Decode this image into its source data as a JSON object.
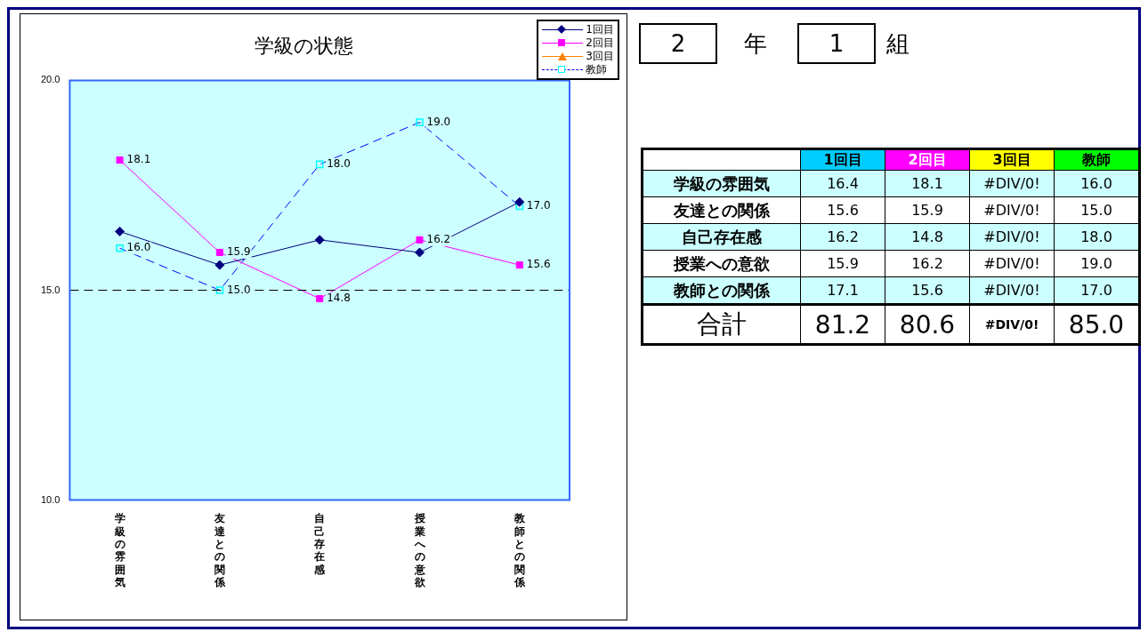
{
  "chart_data": [
    {
      "type": "line",
      "title": "学級の状態",
      "categories": [
        "学級の雰囲気",
        "友達との関係",
        "自己存在感",
        "授業への意欲",
        "教師との関係"
      ],
      "series": [
        {
          "name": "1回目",
          "color": "#000080",
          "marker": "diamond",
          "line_style": "solid",
          "values": [
            16.4,
            15.6,
            16.2,
            15.9,
            17.1
          ]
        },
        {
          "name": "2回目",
          "color": "#ff00ff",
          "marker": "square",
          "line_style": "solid",
          "values": [
            18.1,
            15.9,
            14.8,
            16.2,
            15.6
          ],
          "value_labels": [
            "18.1",
            "15.9",
            "14.8",
            "16.2",
            "15.6"
          ]
        },
        {
          "name": "3回目",
          "color": "#ff8000",
          "marker": "triangle",
          "line_style": "solid",
          "values": [
            null,
            null,
            null,
            null,
            null
          ]
        },
        {
          "name": "教師",
          "color": "#0000ff",
          "marker": "square",
          "line_style": "dashed",
          "values": [
            16.0,
            15.0,
            18.0,
            19.0,
            17.0
          ],
          "value_labels": [
            "16.0",
            "15.0",
            "18.0",
            "19.0",
            "17.0"
          ]
        }
      ],
      "ylim": [
        10,
        20
      ],
      "yticks": [
        {
          "value": 10,
          "label": "10.0"
        },
        {
          "value": 15,
          "label": "15.0"
        },
        {
          "value": 20,
          "label": "20.0"
        }
      ],
      "ref_lines": [
        {
          "axis": "y",
          "value": 15,
          "color": "#000000",
          "line_style": "dashed"
        }
      ],
      "grid": false,
      "legend": "top right"
    },
    {
      "type": "other",
      "annotations": [
        "2",
        "年",
        "1",
        "組"
      ],
      "categories": [
        "1回目",
        "2回目",
        "3回目",
        "教師"
      ],
      "colors": [
        "#00ccff",
        "#ff00ff",
        "#ffff00",
        "#00ff00"
      ],
      "y_categories": [
        "学級の雰囲気",
        "友達との関係",
        "自己存在感",
        "授業への意欲",
        "教師との関係",
        "合計"
      ],
      "cell_labels": [
        [
          "16.4",
          "18.1",
          "#DIV/0!",
          "16.0"
        ],
        [
          "15.6",
          "15.9",
          "#DIV/0!",
          "15.0"
        ],
        [
          "16.2",
          "14.8",
          "#DIV/0!",
          "18.0"
        ],
        [
          "15.9",
          "16.2",
          "#DIV/0!",
          "19.0"
        ],
        [
          "17.1",
          "15.6",
          "#DIV/0!",
          "17.0"
        ],
        [
          "81.2",
          "80.6",
          "#DIV/0!",
          "85.0"
        ]
      ]
    }
  ]
}
